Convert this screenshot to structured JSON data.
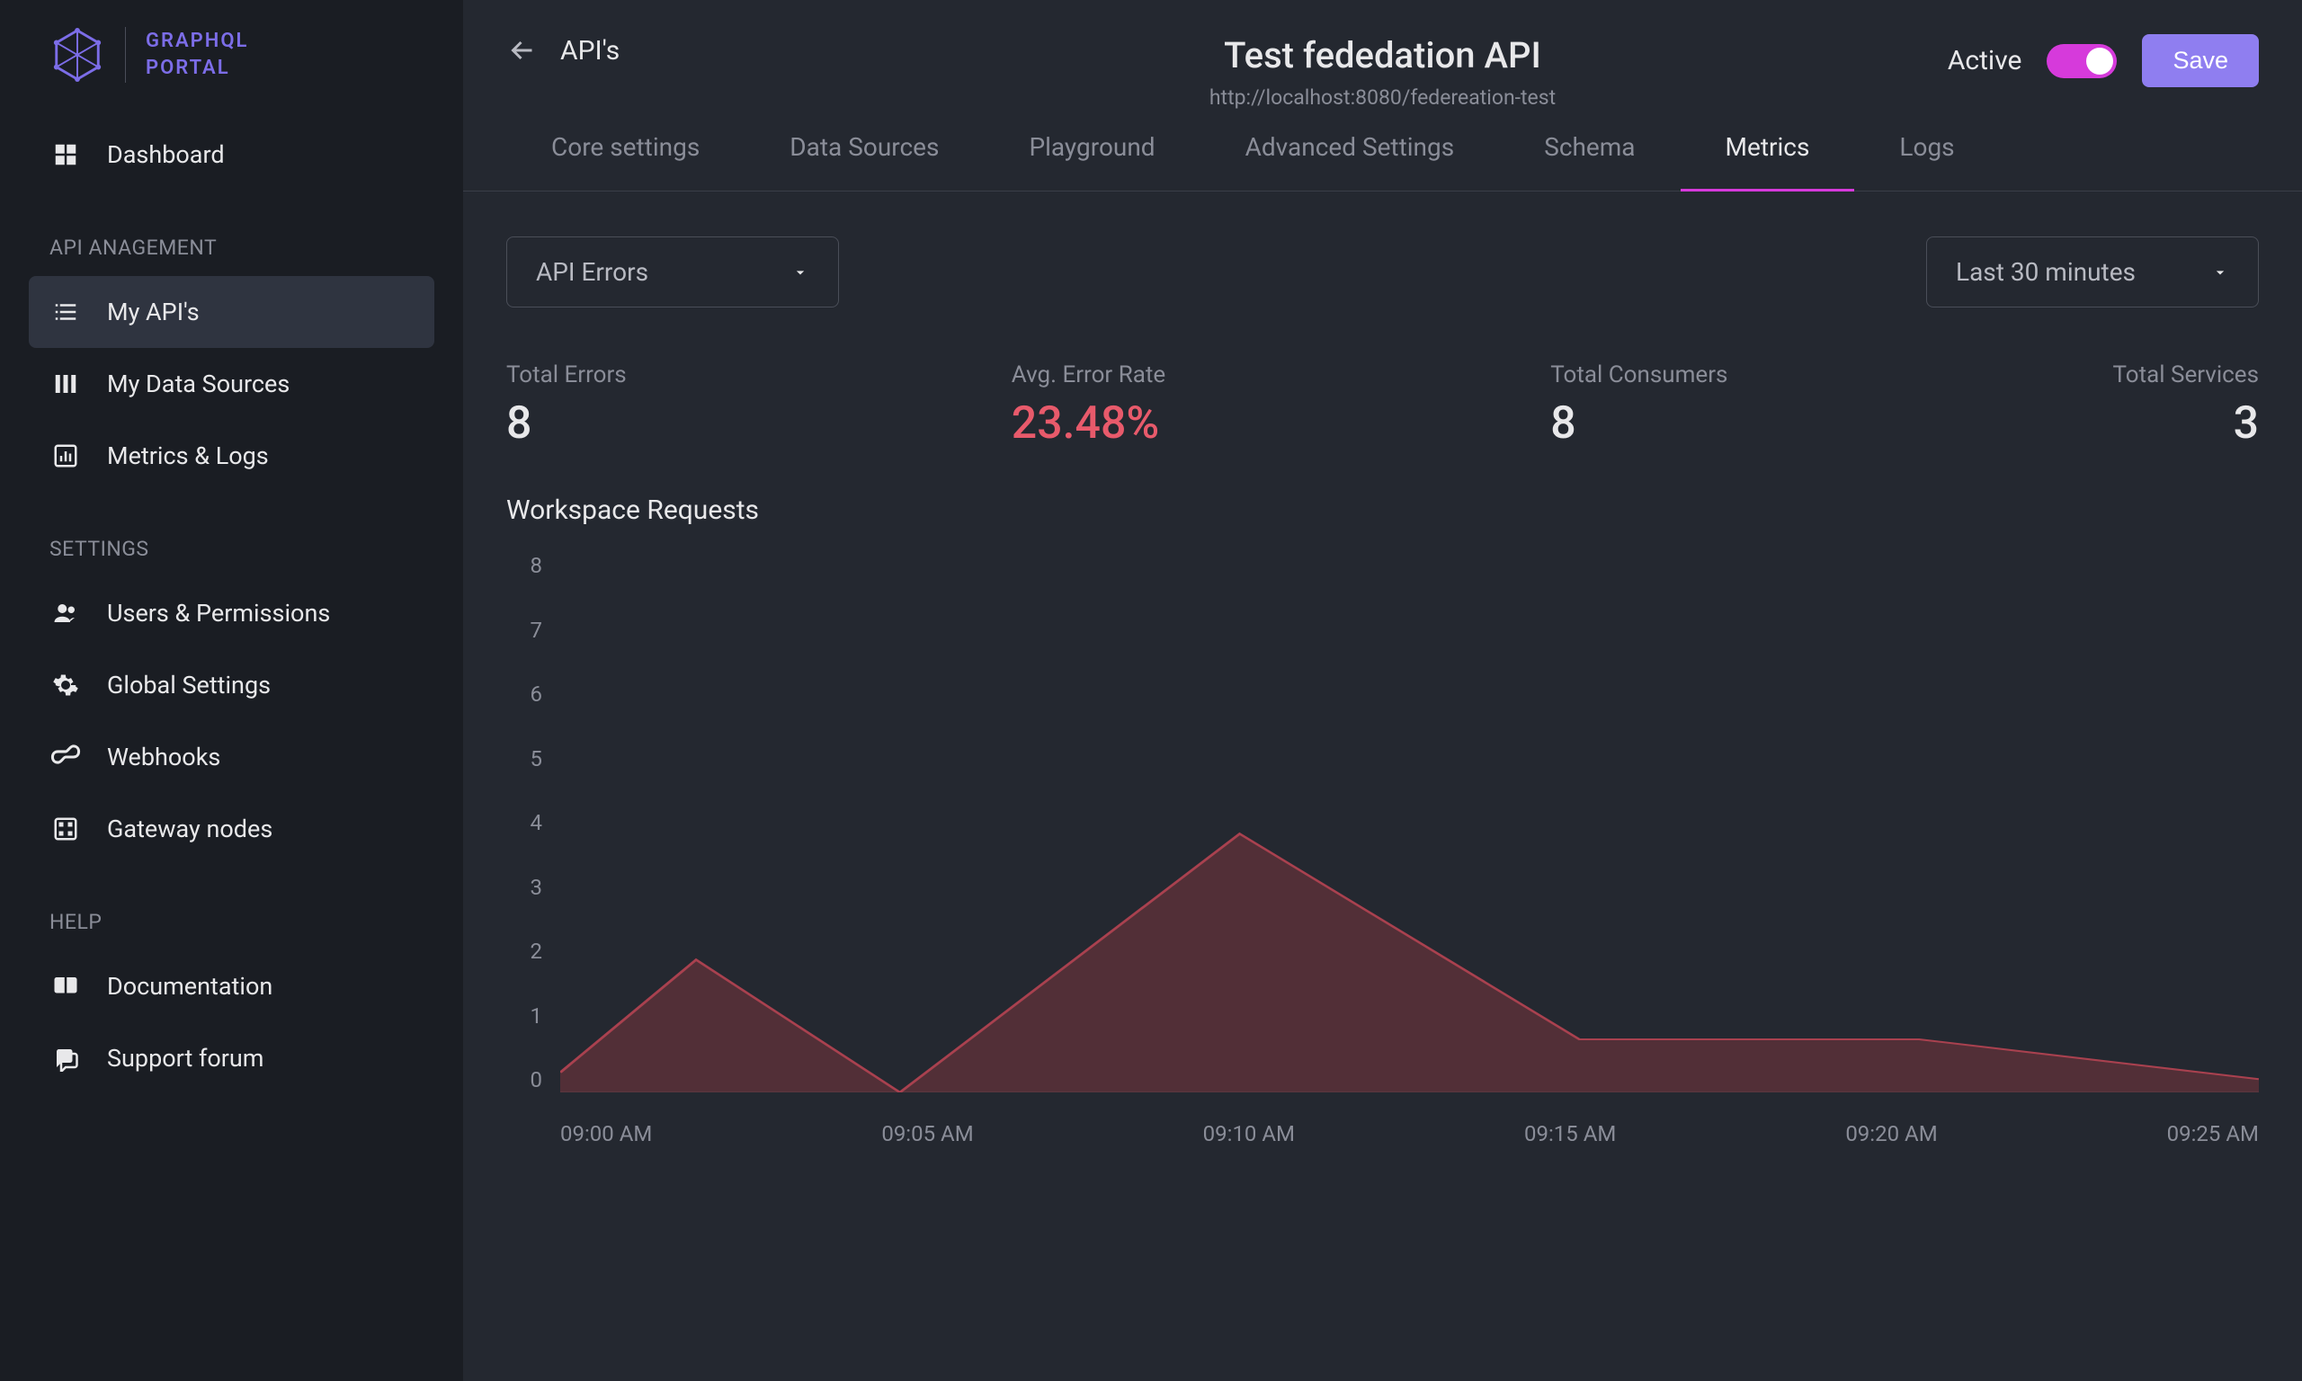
{
  "brand": {
    "line1": "GRAPHQL",
    "line2": "PORTAL",
    "color": "#7c6de8"
  },
  "sidebar": {
    "dashboard": "Dashboard",
    "sections": {
      "api_management": {
        "heading": "API ANAGEMENT",
        "items": [
          "My API's",
          "My Data Sources",
          "Metrics & Logs"
        ],
        "active_index": 0
      },
      "settings": {
        "heading": "SETTINGS",
        "items": [
          "Users & Permissions",
          "Global Settings",
          "Webhooks",
          "Gateway nodes"
        ]
      },
      "help": {
        "heading": "HELP",
        "items": [
          "Documentation",
          "Support forum"
        ]
      }
    }
  },
  "header": {
    "back_label": "API's",
    "title": "Test fededation API",
    "url": "http://localhost:8080/federeation-test",
    "active_label": "Active",
    "toggle_on": true,
    "toggle_color": "#d63adb",
    "save_label": "Save",
    "save_bg": "#8f7ef0"
  },
  "tabs": {
    "items": [
      "Core settings",
      "Data Sources",
      "Playground",
      "Advanced Settings",
      "Schema",
      "Metrics",
      "Logs"
    ],
    "active_index": 5,
    "active_underline_color": "#d63adb"
  },
  "controls": {
    "metric_select": "API Errors",
    "time_select": "Last 30 minutes"
  },
  "stats": [
    {
      "label": "Total Errors",
      "value": "8",
      "color": "#e8e8ea",
      "align": "left"
    },
    {
      "label": "Avg. Error Rate",
      "value": "23.48%",
      "color": "#e85a6b",
      "align": "left"
    },
    {
      "label": "Total Consumers",
      "value": "8",
      "color": "#e8e8ea",
      "align": "left"
    },
    {
      "label": "Total Services",
      "value": "3",
      "color": "#e8e8ea",
      "align": "right"
    }
  ],
  "chart": {
    "title": "Workspace Requests",
    "type": "area",
    "x_labels": [
      "09:00 AM",
      "09:05 AM",
      "09:10 AM",
      "09:15 AM",
      "09:20 AM",
      "09:25 AM"
    ],
    "y_ticks": [
      8,
      7,
      6,
      5,
      4,
      3,
      2,
      1,
      0
    ],
    "ylim": [
      0,
      8
    ],
    "values": [
      0.3,
      2.0,
      0.0,
      3.9,
      0.8,
      0.8,
      0.2
    ],
    "x_positions": [
      0,
      0.08,
      0.2,
      0.4,
      0.6,
      0.8,
      1.0
    ],
    "line_color": "#a9414f",
    "fill_color": "#5a3038",
    "fill_opacity": 0.85,
    "line_width": 2,
    "baseline_color": "#5a5e68",
    "background": "#242830",
    "tick_color": "#8a8d98",
    "tick_fontsize": 24
  },
  "colors": {
    "sidebar_bg": "#1a1d23",
    "main_bg": "#242830",
    "text": "#e8e8ea",
    "muted": "#8a8d98",
    "border": "#3a3e48",
    "nav_active_bg": "#2f3440"
  }
}
